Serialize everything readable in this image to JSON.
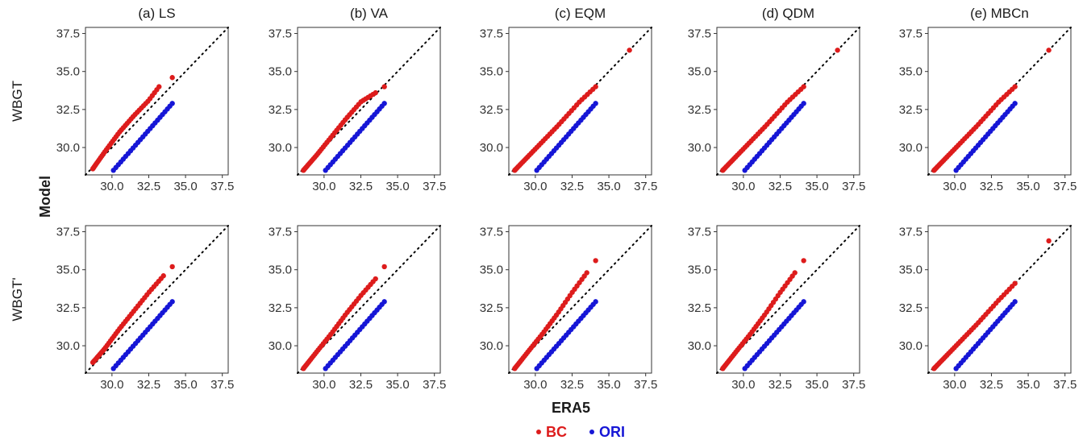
{
  "figure": {
    "xlabel": "ERA5",
    "ylabel": "Model",
    "legend": [
      {
        "label": "BC",
        "color": "#dd1c1c"
      },
      {
        "label": "ORI",
        "color": "#1616d6"
      }
    ],
    "legend_position": "bottom"
  },
  "colors": {
    "bc": "#dd1c1c",
    "ori": "#1616d6",
    "reference_line": "#000000",
    "panel_border": "#333333"
  },
  "chart_data": {
    "type": "scatter",
    "description": "Quantile-quantile comparison of bias-corrected (BC) and original (ORI) model vs ERA5",
    "columns": [
      "(a) LS",
      "(b) VA",
      "(c) EQM",
      "(d) QDM",
      "(e) MBCn"
    ],
    "rows": [
      "WBGT",
      "WBGT'"
    ],
    "xlim": [
      28.2,
      37.9
    ],
    "ylim": [
      28.2,
      37.9
    ],
    "ticks": [
      30.0,
      32.5,
      35.0,
      37.5
    ],
    "tick_labels": [
      "30.0",
      "32.5",
      "35.0",
      "37.5"
    ],
    "reference_line": "y = x (dotted)",
    "ori_series": {
      "name": "ORI",
      "x_start": 30.1,
      "x_end": 34.1,
      "y_start": 28.5,
      "y_end": 32.9,
      "n": 25
    },
    "panels": [
      {
        "row": 0,
        "col": 0,
        "bc": {
          "name": "BC",
          "knots": [
            [
              28.7,
              28.6
            ],
            [
              29.5,
              29.7
            ],
            [
              30.5,
              31.0
            ],
            [
              31.5,
              32.1
            ],
            [
              32.5,
              33.1
            ],
            [
              33.2,
              34.0
            ]
          ],
          "n": 40,
          "outliers": [
            [
              34.1,
              34.6
            ]
          ]
        }
      },
      {
        "row": 0,
        "col": 1,
        "bc": {
          "name": "BC",
          "knots": [
            [
              28.6,
              28.5
            ],
            [
              29.5,
              29.5
            ],
            [
              30.5,
              30.7
            ],
            [
              31.5,
              31.9
            ],
            [
              32.5,
              33.0
            ],
            [
              33.5,
              33.6
            ]
          ],
          "n": 40,
          "outliers": [
            [
              34.1,
              34.0
            ]
          ]
        }
      },
      {
        "row": 0,
        "col": 2,
        "bc": {
          "name": "BC",
          "knots": [
            [
              28.6,
              28.5
            ],
            [
              30.0,
              29.9
            ],
            [
              31.5,
              31.4
            ],
            [
              33.0,
              33.0
            ],
            [
              34.1,
              34.0
            ]
          ],
          "n": 40,
          "outliers": [
            [
              36.4,
              36.4
            ]
          ]
        }
      },
      {
        "row": 0,
        "col": 3,
        "bc": {
          "name": "BC",
          "knots": [
            [
              28.6,
              28.5
            ],
            [
              30.0,
              29.9
            ],
            [
              31.5,
              31.4
            ],
            [
              33.0,
              33.0
            ],
            [
              34.1,
              34.0
            ]
          ],
          "n": 40,
          "outliers": [
            [
              36.4,
              36.4
            ]
          ]
        }
      },
      {
        "row": 0,
        "col": 4,
        "bc": {
          "name": "BC",
          "knots": [
            [
              28.6,
              28.5
            ],
            [
              30.0,
              29.9
            ],
            [
              31.5,
              31.4
            ],
            [
              33.0,
              33.0
            ],
            [
              34.1,
              34.0
            ]
          ],
          "n": 40,
          "outliers": [
            [
              36.4,
              36.4
            ]
          ]
        }
      },
      {
        "row": 1,
        "col": 0,
        "bc": {
          "name": "BC",
          "knots": [
            [
              28.7,
              28.9
            ],
            [
              29.5,
              29.8
            ],
            [
              30.5,
              31.1
            ],
            [
              31.5,
              32.3
            ],
            [
              32.5,
              33.5
            ],
            [
              33.5,
              34.6
            ]
          ],
          "n": 40,
          "outliers": [
            [
              34.1,
              35.2
            ]
          ]
        }
      },
      {
        "row": 1,
        "col": 1,
        "bc": {
          "name": "BC",
          "knots": [
            [
              28.6,
              28.5
            ],
            [
              29.5,
              29.6
            ],
            [
              30.5,
              30.8
            ],
            [
              31.5,
              32.1
            ],
            [
              32.5,
              33.3
            ],
            [
              33.5,
              34.4
            ]
          ],
          "n": 40,
          "outliers": [
            [
              34.1,
              35.2
            ]
          ]
        }
      },
      {
        "row": 1,
        "col": 2,
        "bc": {
          "name": "BC",
          "knots": [
            [
              28.6,
              28.5
            ],
            [
              29.5,
              29.6
            ],
            [
              30.5,
              30.8
            ],
            [
              31.5,
              32.1
            ],
            [
              32.5,
              33.5
            ],
            [
              33.5,
              34.8
            ]
          ],
          "n": 40,
          "outliers": [
            [
              34.1,
              35.6
            ]
          ]
        }
      },
      {
        "row": 1,
        "col": 3,
        "bc": {
          "name": "BC",
          "knots": [
            [
              28.6,
              28.5
            ],
            [
              29.5,
              29.6
            ],
            [
              30.5,
              30.8
            ],
            [
              31.5,
              32.1
            ],
            [
              32.5,
              33.5
            ],
            [
              33.5,
              34.8
            ]
          ],
          "n": 40,
          "outliers": [
            [
              34.1,
              35.6
            ]
          ]
        }
      },
      {
        "row": 1,
        "col": 4,
        "bc": {
          "name": "BC",
          "knots": [
            [
              28.6,
              28.5
            ],
            [
              30.0,
              29.9
            ],
            [
              31.5,
              31.4
            ],
            [
              33.0,
              33.0
            ],
            [
              34.1,
              34.1
            ]
          ],
          "n": 40,
          "outliers": [
            [
              36.4,
              36.9
            ]
          ]
        }
      }
    ]
  }
}
